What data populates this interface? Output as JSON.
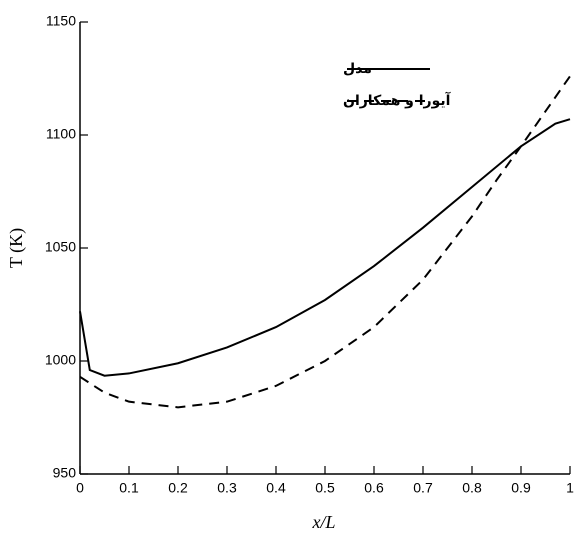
{
  "chart_data": {
    "type": "line",
    "x_label": "x/L",
    "y_label": "T (K)",
    "xlim": [
      0,
      1
    ],
    "xticks": [
      0,
      0.1,
      0.2,
      0.3,
      0.4,
      0.5,
      0.6,
      0.7,
      0.8,
      0.9,
      1
    ],
    "ylim": [
      950,
      1150
    ],
    "yticks": [
      950,
      1000,
      1050,
      1100,
      1150
    ],
    "legend": "upper-right",
    "series": [
      {
        "name": "مدل",
        "color": "#000000",
        "dash": "solid",
        "x": [
          0,
          0.02,
          0.05,
          0.1,
          0.2,
          0.3,
          0.4,
          0.5,
          0.6,
          0.7,
          0.8,
          0.9,
          0.97,
          1
        ],
        "values": [
          1022,
          996,
          993.5,
          994.5,
          999,
          1006,
          1015,
          1027,
          1042,
          1059,
          1077,
          1095,
          1105,
          1107
        ]
      },
      {
        "name": "آیورا و همکاران",
        "color": "#000000",
        "dash": "dashed",
        "x": [
          0,
          0.05,
          0.1,
          0.2,
          0.3,
          0.4,
          0.5,
          0.6,
          0.7,
          0.8,
          0.85,
          0.9,
          1
        ],
        "values": [
          993,
          986,
          982,
          979.5,
          982,
          989,
          1000,
          1015,
          1036,
          1064,
          1080,
          1095,
          1126
        ]
      }
    ]
  }
}
